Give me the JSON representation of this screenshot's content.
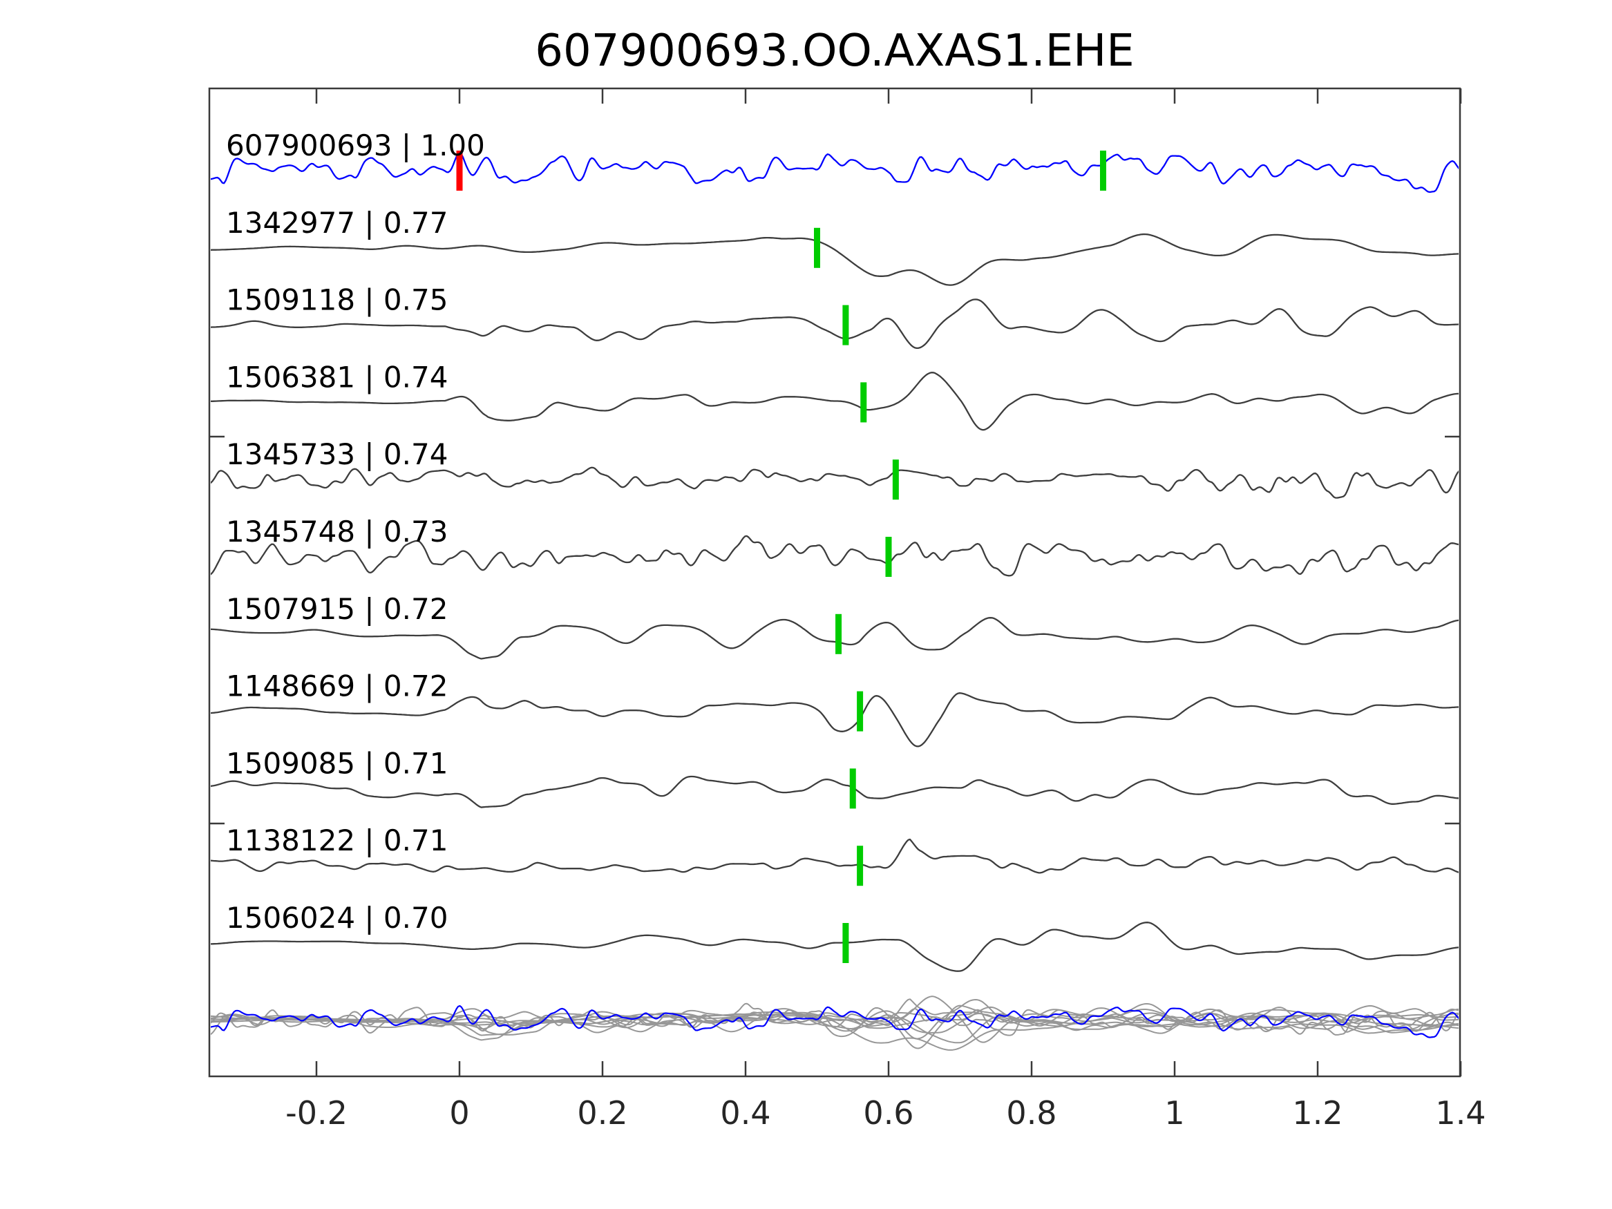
{
  "title": "607900693.OO.AXAS1.EHE",
  "chart_data": {
    "type": "line",
    "title": "607900693.OO.AXAS1.EHE",
    "subtitle": "",
    "xlabel": "",
    "ylabel": "",
    "legend": "none",
    "grid": false,
    "x_axis": {
      "xlim": [
        -0.35,
        1.4
      ],
      "ticks": [
        -0.2,
        0,
        0.2,
        0.4,
        0.6,
        0.8,
        1,
        1.2,
        1.4
      ],
      "tick_labels": [
        "-0.2",
        "0",
        "0.2",
        "0.4",
        "0.6",
        "0.8",
        "1",
        "1.2",
        "1.4"
      ]
    },
    "colors": {
      "template_trace": "#0000ff",
      "match_trace": "#3d3d3d",
      "overlay_trace": "#979797",
      "pick_marker": "#00cc00",
      "template_origin_marker": "#ff0000",
      "frame": "#3a3a3a",
      "text": "#000000"
    },
    "traces": [
      {
        "id": "607900693",
        "correlation": "1.00",
        "label": "607900693 | 1.00",
        "role": "template",
        "origin_mark_time": 0.0,
        "pick_time": 0.9,
        "synthesis": {
          "seed": 7,
          "components": [
            {
              "f": 95,
              "a": 1
            },
            {
              "f": 40,
              "a": 0.45
            },
            {
              "f": 160,
              "a": 0.3
            }
          ],
          "envelope": [
            [
              -0.35,
              27
            ],
            [
              1.4,
              27
            ]
          ]
        }
      },
      {
        "id": "1342977",
        "correlation": "0.77",
        "label": "1342977 | 0.77",
        "role": "match",
        "pick_time": 0.5,
        "synthesis": {
          "seed": 101,
          "components": [
            {
              "f": 15,
              "a": 1
            },
            {
              "f": 32,
              "a": 0.4
            }
          ],
          "envelope": [
            [
              -0.35,
              3
            ],
            [
              -0.16,
              3
            ],
            [
              -0.1,
              13
            ],
            [
              0.1,
              13
            ],
            [
              0.3,
              16
            ],
            [
              0.45,
              22
            ],
            [
              0.52,
              38
            ],
            [
              0.6,
              60
            ],
            [
              0.68,
              50
            ],
            [
              0.8,
              32
            ],
            [
              0.95,
              26
            ],
            [
              1.1,
              28
            ],
            [
              1.25,
              24
            ],
            [
              1.4,
              22
            ]
          ]
        }
      },
      {
        "id": "1509118",
        "correlation": "0.75",
        "label": "1509118 | 0.75",
        "role": "match",
        "pick_time": 0.54,
        "synthesis": {
          "seed": 202,
          "components": [
            {
              "f": 28,
              "a": 1
            },
            {
              "f": 55,
              "a": 0.45
            }
          ],
          "envelope": [
            [
              -0.35,
              5
            ],
            [
              -0.02,
              5
            ],
            [
              0.03,
              42
            ],
            [
              0.09,
              45
            ],
            [
              0.18,
              26
            ],
            [
              0.3,
              20
            ],
            [
              0.45,
              16
            ],
            [
              0.52,
              30
            ],
            [
              0.58,
              62
            ],
            [
              0.66,
              48
            ],
            [
              0.8,
              32
            ],
            [
              1.0,
              28
            ],
            [
              1.2,
              32
            ],
            [
              1.4,
              28
            ]
          ]
        }
      },
      {
        "id": "1506381",
        "correlation": "0.74",
        "label": "1506381 | 0.74",
        "role": "match",
        "pick_time": 0.565,
        "synthesis": {
          "seed": 303,
          "components": [
            {
              "f": 26,
              "a": 1
            },
            {
              "f": 50,
              "a": 0.45
            }
          ],
          "envelope": [
            [
              -0.35,
              4
            ],
            [
              -0.02,
              4
            ],
            [
              0.04,
              40
            ],
            [
              0.1,
              42
            ],
            [
              0.2,
              24
            ],
            [
              0.35,
              22
            ],
            [
              0.5,
              20
            ],
            [
              0.57,
              52
            ],
            [
              0.64,
              42
            ],
            [
              0.75,
              36
            ],
            [
              0.9,
              22
            ],
            [
              1.1,
              18
            ],
            [
              1.28,
              26
            ],
            [
              1.4,
              16
            ]
          ]
        }
      },
      {
        "id": "1345733",
        "correlation": "0.74",
        "label": "1345733 | 0.74",
        "role": "match",
        "pick_time": 0.61,
        "synthesis": {
          "seed": 404,
          "components": [
            {
              "f": 85,
              "a": 1
            },
            {
              "f": 150,
              "a": 0.4
            },
            {
              "f": 35,
              "a": 0.5
            }
          ],
          "envelope": [
            [
              -0.35,
              32
            ],
            [
              -0.25,
              20
            ],
            [
              0,
              18
            ],
            [
              0.3,
              20
            ],
            [
              0.5,
              16
            ],
            [
              0.7,
              17
            ],
            [
              0.85,
              14
            ],
            [
              1.0,
              24
            ],
            [
              1.15,
              28
            ],
            [
              1.3,
              30
            ],
            [
              1.4,
              33
            ]
          ]
        }
      },
      {
        "id": "1345748",
        "correlation": "0.73",
        "label": "1345748 | 0.73",
        "role": "match",
        "pick_time": 0.6,
        "synthesis": {
          "seed": 505,
          "components": [
            {
              "f": 78,
              "a": 1
            },
            {
              "f": 140,
              "a": 0.4
            },
            {
              "f": 30,
              "a": 0.55
            }
          ],
          "envelope": [
            [
              -0.35,
              26
            ],
            [
              0,
              27
            ],
            [
              0.2,
              26
            ],
            [
              0.4,
              28
            ],
            [
              0.55,
              31
            ],
            [
              0.7,
              28
            ],
            [
              0.9,
              26
            ],
            [
              1.1,
              27
            ],
            [
              1.25,
              28
            ],
            [
              1.4,
              30
            ]
          ]
        }
      },
      {
        "id": "1507915",
        "correlation": "0.72",
        "label": "1507915 | 0.72",
        "role": "match",
        "pick_time": 0.53,
        "synthesis": {
          "seed": 606,
          "components": [
            {
              "f": 24,
              "a": 1
            },
            {
              "f": 48,
              "a": 0.4
            }
          ],
          "envelope": [
            [
              -0.35,
              6
            ],
            [
              -0.03,
              6
            ],
            [
              0.03,
              46
            ],
            [
              0.1,
              40
            ],
            [
              0.2,
              24
            ],
            [
              0.35,
              20
            ],
            [
              0.48,
              30
            ],
            [
              0.56,
              60
            ],
            [
              0.66,
              46
            ],
            [
              0.8,
              30
            ],
            [
              0.95,
              26
            ],
            [
              1.15,
              22
            ],
            [
              1.4,
              20
            ]
          ]
        }
      },
      {
        "id": "1148669",
        "correlation": "0.72",
        "label": "1148669 | 0.72",
        "role": "match",
        "pick_time": 0.56,
        "synthesis": {
          "seed": 707,
          "components": [
            {
              "f": 30,
              "a": 1
            },
            {
              "f": 60,
              "a": 0.4
            }
          ],
          "envelope": [
            [
              -0.35,
              6
            ],
            [
              -0.02,
              6
            ],
            [
              0.03,
              48
            ],
            [
              0.1,
              42
            ],
            [
              0.2,
              22
            ],
            [
              0.35,
              16
            ],
            [
              0.5,
              14
            ],
            [
              0.57,
              55
            ],
            [
              0.65,
              45
            ],
            [
              0.78,
              26
            ],
            [
              0.95,
              18
            ],
            [
              1.15,
              18
            ],
            [
              1.3,
              22
            ],
            [
              1.4,
              18
            ]
          ]
        }
      },
      {
        "id": "1509085",
        "correlation": "0.71",
        "label": "1509085 | 0.71",
        "role": "match",
        "pick_time": 0.55,
        "synthesis": {
          "seed": 808,
          "components": [
            {
              "f": 28,
              "a": 1
            },
            {
              "f": 55,
              "a": 0.45
            }
          ],
          "envelope": [
            [
              -0.35,
              12
            ],
            [
              -0.02,
              14
            ],
            [
              0.03,
              44
            ],
            [
              0.12,
              34
            ],
            [
              0.25,
              26
            ],
            [
              0.4,
              20
            ],
            [
              0.5,
              26
            ],
            [
              0.57,
              52
            ],
            [
              0.66,
              46
            ],
            [
              0.8,
              30
            ],
            [
              0.95,
              26
            ],
            [
              1.1,
              20
            ],
            [
              1.25,
              24
            ],
            [
              1.4,
              26
            ]
          ]
        }
      },
      {
        "id": "1138122",
        "correlation": "0.71",
        "label": "1138122 | 0.71",
        "role": "match",
        "pick_time": 0.56,
        "synthesis": {
          "seed": 909,
          "components": [
            {
              "f": 50,
              "a": 1
            },
            {
              "f": 95,
              "a": 0.5
            }
          ],
          "envelope": [
            [
              -0.35,
              9
            ],
            [
              0,
              9
            ],
            [
              0.3,
              9
            ],
            [
              0.5,
              12
            ],
            [
              0.58,
              16
            ],
            [
              0.63,
              38
            ],
            [
              0.68,
              16
            ],
            [
              0.8,
              18
            ],
            [
              0.95,
              12
            ],
            [
              1.1,
              12
            ],
            [
              1.22,
              20
            ],
            [
              1.32,
              16
            ],
            [
              1.4,
              12
            ]
          ]
        }
      },
      {
        "id": "1506024",
        "correlation": "0.70",
        "label": "1506024 | 0.70",
        "role": "match",
        "pick_time": 0.54,
        "synthesis": {
          "seed": 1010,
          "components": [
            {
              "f": 20,
              "a": 1
            },
            {
              "f": 40,
              "a": 0.4
            }
          ],
          "envelope": [
            [
              -0.35,
              4
            ],
            [
              -0.05,
              4
            ],
            [
              0.02,
              12
            ],
            [
              0.3,
              10
            ],
            [
              0.45,
              12
            ],
            [
              0.52,
              28
            ],
            [
              0.59,
              58
            ],
            [
              0.68,
              48
            ],
            [
              0.8,
              34
            ],
            [
              0.95,
              38
            ],
            [
              1.1,
              24
            ],
            [
              1.27,
              38
            ],
            [
              1.4,
              26
            ]
          ]
        }
      }
    ],
    "overlay_row": {
      "description": "All matched traces overlaid in light gray with blue template on top",
      "scale": 0.8
    }
  }
}
